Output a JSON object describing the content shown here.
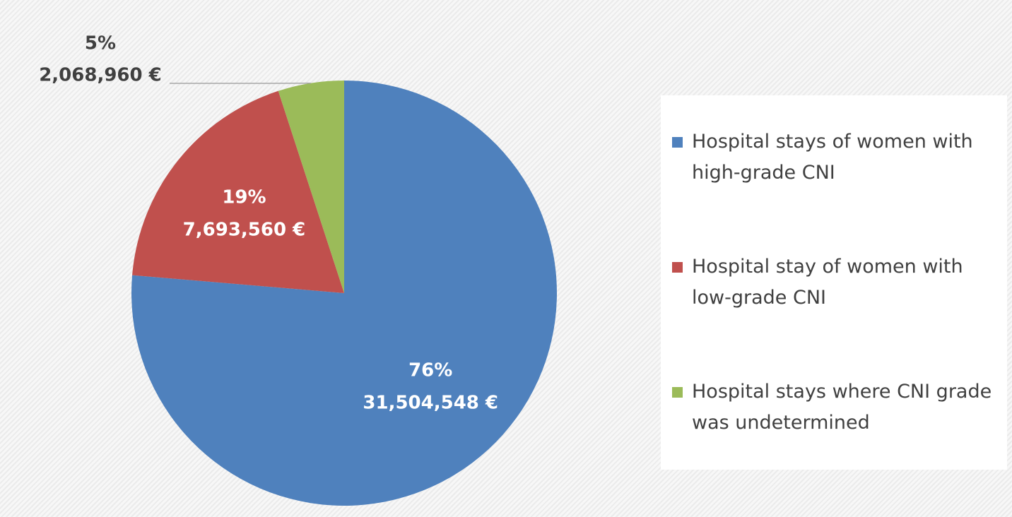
{
  "chart_data": {
    "type": "pie",
    "categories": [
      "Hospital stays of women with high-grade CNI",
      "Hospital stay of women with low-grade CNI",
      "Hospital stays where CNI grade was undetermined"
    ],
    "values": [
      31504548,
      7693560,
      2068960
    ],
    "value_labels": [
      "31,504,548 €",
      "7,693,560 €",
      "2,068,960 €"
    ],
    "percent_labels": [
      "76%",
      "19%",
      "5%"
    ],
    "colors": [
      "#4f81bd",
      "#c0504d",
      "#9bbb59"
    ],
    "legend": "right"
  }
}
